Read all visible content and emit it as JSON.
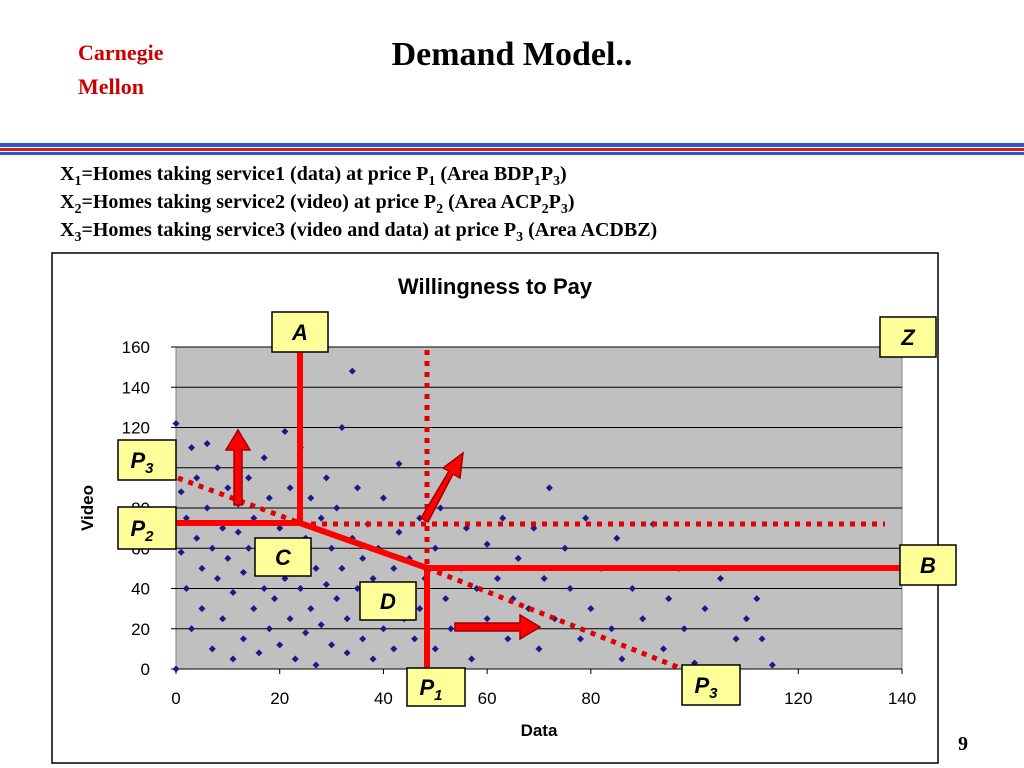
{
  "header": {
    "org": [
      "Carnegie",
      "Mellon"
    ],
    "title": "Demand Model..",
    "lines": [
      [
        "X",
        {
          "sub": "1"
        },
        "=Homes taking service1 (data) at price P",
        {
          "sub": "1"
        },
        " (Area BDP",
        {
          "sub": "1"
        },
        "P",
        {
          "sub": "3"
        },
        ")"
      ],
      [
        "X",
        {
          "sub": "2"
        },
        "=Homes taking service2 (video) at price P",
        {
          "sub": "2"
        },
        " (Area ACP",
        {
          "sub": "2"
        },
        "P",
        {
          "sub": "3"
        },
        ")"
      ],
      [
        "X",
        {
          "sub": "3"
        },
        "=Homes taking service3 (video and data) at price P",
        {
          "sub": "3"
        },
        " (Area ACDBZ)"
      ]
    ]
  },
  "page_number": "9",
  "chart_data": {
    "type": "scatter",
    "title": "Willingness to Pay",
    "x_label": "Data",
    "y_label": "Video",
    "color": "#1a1a8c",
    "background": "#c0c0c0",
    "grid": true,
    "xlim": [
      0,
      140
    ],
    "xticks": [
      0,
      20,
      40,
      60,
      80,
      100,
      120,
      140
    ],
    "ylim": [
      0,
      160
    ],
    "yticks": [
      0,
      20,
      40,
      60,
      80,
      100,
      120,
      140,
      160
    ],
    "x": [
      0,
      0,
      1,
      1,
      2,
      2,
      3,
      3,
      4,
      4,
      5,
      5,
      6,
      6,
      7,
      7,
      8,
      8,
      9,
      9,
      10,
      10,
      11,
      11,
      12,
      12,
      13,
      13,
      14,
      14,
      15,
      15,
      16,
      16,
      17,
      17,
      18,
      18,
      19,
      19,
      20,
      20,
      21,
      21,
      22,
      22,
      23,
      23,
      24,
      24,
      25,
      25,
      26,
      26,
      27,
      27,
      28,
      28,
      29,
      29,
      30,
      30,
      31,
      31,
      32,
      32,
      33,
      33,
      34,
      34,
      35,
      35,
      36,
      36,
      37,
      37,
      38,
      38,
      39,
      40,
      40,
      41,
      42,
      42,
      43,
      43,
      44,
      45,
      45,
      46,
      47,
      47,
      48,
      50,
      50,
      51,
      52,
      53,
      55,
      56,
      57,
      58,
      60,
      60,
      62,
      63,
      64,
      65,
      66,
      68,
      69,
      70,
      71,
      72,
      73,
      75,
      76,
      78,
      79,
      80,
      82,
      84,
      85,
      86,
      88,
      90,
      92,
      94,
      95,
      97,
      98,
      100,
      102,
      105,
      108,
      110,
      112,
      113,
      115
    ],
    "y": [
      0,
      122,
      58,
      88,
      40,
      75,
      110,
      20,
      65,
      95,
      30,
      50,
      112,
      80,
      10,
      60,
      45,
      100,
      25,
      70,
      55,
      90,
      5,
      38,
      68,
      82,
      15,
      48,
      60,
      95,
      30,
      75,
      8,
      52,
      105,
      40,
      20,
      85,
      62,
      35,
      12,
      70,
      118,
      45,
      25,
      90,
      55,
      5,
      40,
      110,
      65,
      18,
      30,
      85,
      50,
      2,
      75,
      22,
      42,
      95,
      60,
      12,
      35,
      80,
      120,
      50,
      8,
      25,
      148,
      65,
      40,
      90,
      15,
      55,
      30,
      72,
      5,
      45,
      60,
      20,
      85,
      35,
      50,
      10,
      102,
      68,
      25,
      55,
      40,
      15,
      75,
      30,
      45,
      60,
      10,
      80,
      35,
      20,
      50,
      70,
      5,
      40,
      25,
      62,
      45,
      75,
      15,
      35,
      55,
      30,
      70,
      10,
      45,
      90,
      25,
      60,
      40,
      15,
      75,
      30,
      50,
      20,
      65,
      5,
      40,
      25,
      72,
      10,
      35,
      50,
      20,
      3,
      30,
      45,
      15,
      25,
      35,
      15,
      2
    ]
  },
  "annotations": [
    {
      "text": "A"
    },
    {
      "text": "Z"
    },
    {
      "text": "P",
      "sub": "3"
    },
    {
      "text": "P",
      "sub": "2"
    },
    {
      "text": "C"
    },
    {
      "text": "B"
    },
    {
      "text": "D"
    },
    {
      "text": "P",
      "sub": "1"
    },
    {
      "text": "P",
      "sub": "3"
    }
  ]
}
